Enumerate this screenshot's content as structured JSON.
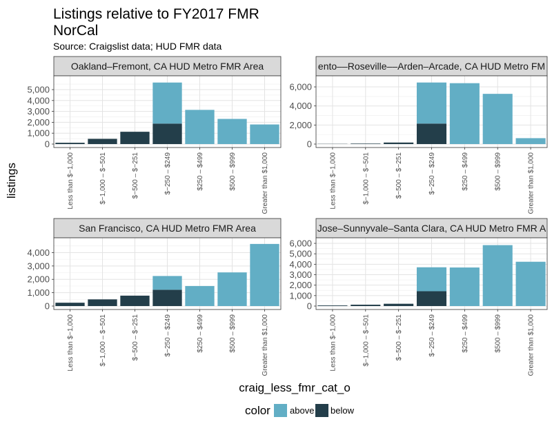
{
  "chart_data": {
    "type": "bar",
    "stacked": true,
    "title": "Listings relative to FY2017 FMR",
    "title_line2": "NorCal",
    "subtitle": "Source: Craigslist data; HUD FMR data",
    "xlabel": "craig_less_fmr_cat_o",
    "ylabel": "listings",
    "categories": [
      "Less than $−1,000",
      "$−1,000 – $−501",
      "$−500 – $−251",
      "$−250 – $249",
      "$250 – $499",
      "$500 – $999",
      "Greater than $1,000"
    ],
    "legend": {
      "title": "color",
      "position": "bottom",
      "entries": [
        {
          "key": "above",
          "label": "above",
          "color": "#62aec5"
        },
        {
          "key": "below",
          "label": "below",
          "color": "#233e4a"
        }
      ]
    },
    "panels": [
      {
        "id": "oakland",
        "strip": "Oakland–Fremont, CA HUD Metro FMR Area",
        "ylim": [
          0,
          5950
        ],
        "yticks": [
          0,
          1000,
          2000,
          3000,
          4000,
          5000
        ],
        "ytick_labels": [
          "0",
          "1,000",
          "2,000",
          "3,000",
          "4,000",
          "5,000"
        ],
        "below": [
          120,
          480,
          1130,
          1880,
          0,
          0,
          0
        ],
        "above": [
          0,
          0,
          0,
          3770,
          3140,
          2310,
          1800
        ]
      },
      {
        "id": "sacramento",
        "strip": "ento––Roseville––Arden–Arcade, CA HUD Metro FM",
        "ylim": [
          0,
          6800
        ],
        "yticks": [
          0,
          2000,
          4000,
          6000
        ],
        "ytick_labels": [
          "0",
          "2,000",
          "4,000",
          "6,000"
        ],
        "below": [
          20,
          50,
          160,
          2150,
          0,
          0,
          0
        ],
        "above": [
          0,
          0,
          0,
          4310,
          6390,
          5270,
          620
        ]
      },
      {
        "id": "sanfrancisco",
        "strip": "San Francisco, CA HUD Metro FMR Area",
        "ylim": [
          0,
          4850
        ],
        "yticks": [
          0,
          1000,
          2000,
          3000,
          4000
        ],
        "ytick_labels": [
          "0",
          "1,000",
          "2,000",
          "3,000",
          "4,000"
        ],
        "below": [
          250,
          500,
          780,
          1220,
          0,
          0,
          0
        ],
        "above": [
          0,
          0,
          0,
          1030,
          1500,
          2520,
          4650
        ]
      },
      {
        "id": "sanjose",
        "strip": "Jose–Sunnyvale–Santa Clara, CA HUD Metro FMR A",
        "ylim": [
          0,
          6200
        ],
        "yticks": [
          0,
          1000,
          2000,
          3000,
          4000,
          5000,
          6000
        ],
        "ytick_labels": [
          "0",
          "1,000",
          "2,000",
          "3,000",
          "4,000",
          "5,000",
          "6,000"
        ],
        "below": [
          60,
          130,
          220,
          1420,
          0,
          0,
          0
        ],
        "above": [
          0,
          0,
          0,
          2290,
          3690,
          5830,
          4240
        ]
      }
    ]
  }
}
